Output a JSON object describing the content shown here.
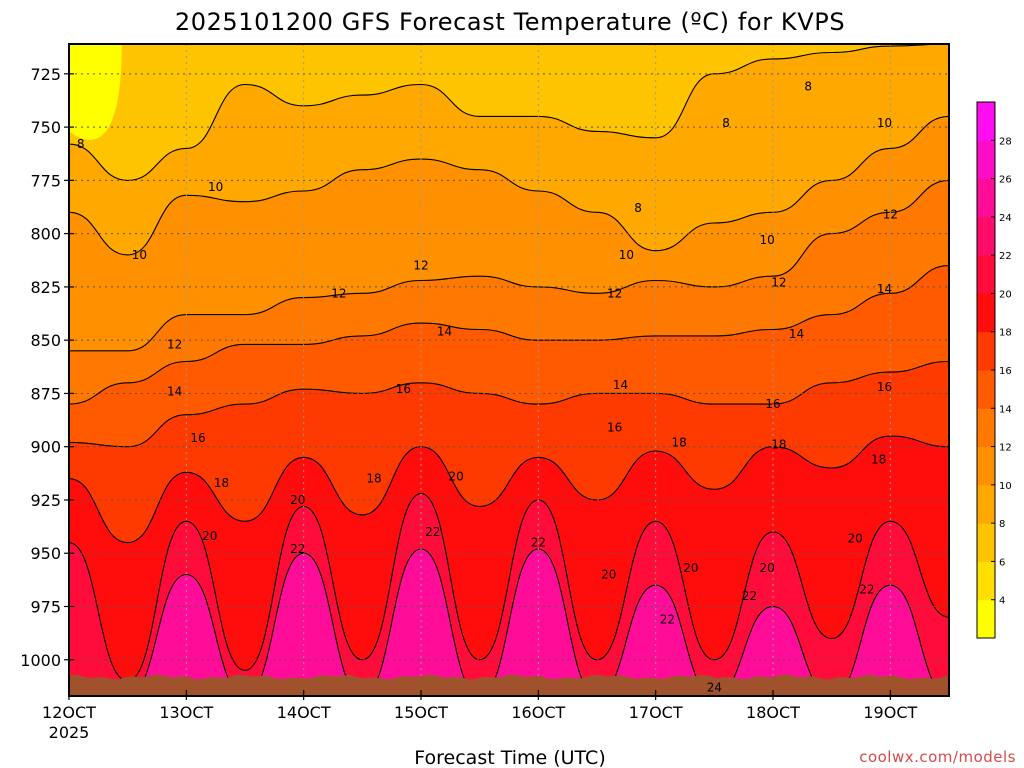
{
  "chart_data": {
    "type": "contour",
    "title": "2025101200 GFS Forecast Temperature (ºC) for KVPS",
    "xlabel": "Forecast Time (UTC)",
    "ylabel": "",
    "x_ticks": [
      {
        "label": "12OCT",
        "sublabel": "2025",
        "day": 12
      },
      {
        "label": "13OCT",
        "day": 13
      },
      {
        "label": "14OCT",
        "day": 14
      },
      {
        "label": "15OCT",
        "day": 15
      },
      {
        "label": "16OCT",
        "day": 16
      },
      {
        "label": "17OCT",
        "day": 17
      },
      {
        "label": "18OCT",
        "day": 18
      },
      {
        "label": "19OCT",
        "day": 19
      }
    ],
    "x_range_days": [
      12,
      19.5
    ],
    "y_ticks": [
      725,
      750,
      775,
      800,
      825,
      850,
      875,
      900,
      925,
      950,
      975,
      1000
    ],
    "y_range_hpa": [
      711,
      1017
    ],
    "grid": true,
    "colorbar": {
      "labels": [
        "4",
        "6",
        "8",
        "10",
        "12",
        "14",
        "16",
        "18",
        "20",
        "22",
        "24",
        "26",
        "28"
      ],
      "colors": [
        "#ffff00",
        "#ffdf00",
        "#ffc400",
        "#ffa800",
        "#ff9000",
        "#ff7800",
        "#ff5a00",
        "#ff3a00",
        "#ff0c0c",
        "#ff0c3a",
        "#ff0c6a",
        "#ff0c98",
        "#ff0cc8",
        "#ff0cf0"
      ]
    },
    "contour_levels": [
      8,
      10,
      12,
      14,
      16,
      18,
      20,
      22,
      24
    ],
    "isotherm_pressure_hpa": [
      {
        "level": 8,
        "p": [
          758,
          775,
          760,
          730,
          740,
          735,
          730,
          745,
          745,
          752,
          755,
          725,
          718,
          715,
          712,
          711
        ]
      },
      {
        "level": 10,
        "p": [
          790,
          810,
          782,
          785,
          780,
          770,
          765,
          770,
          780,
          790,
          808,
          795,
          790,
          775,
          760,
          745
        ]
      },
      {
        "level": 12,
        "p": [
          855,
          855,
          838,
          838,
          830,
          828,
          822,
          820,
          825,
          828,
          822,
          825,
          820,
          800,
          790,
          775
        ]
      },
      {
        "level": 14,
        "p": [
          880,
          870,
          860,
          852,
          852,
          848,
          842,
          845,
          850,
          850,
          848,
          848,
          845,
          838,
          828,
          815
        ]
      },
      {
        "level": 16,
        "p": [
          898,
          900,
          885,
          880,
          873,
          875,
          870,
          875,
          880,
          875,
          875,
          880,
          880,
          870,
          865,
          860
        ]
      },
      {
        "level": 18,
        "p": [
          915,
          945,
          912,
          935,
          905,
          932,
          900,
          928,
          905,
          925,
          902,
          920,
          900,
          910,
          895,
          900
        ]
      },
      {
        "level": 20,
        "p": [
          945,
          1010,
          935,
          1005,
          928,
          1000,
          922,
          1000,
          925,
          1000,
          935,
          1000,
          940,
          990,
          935,
          980
        ]
      },
      {
        "level": 22,
        "p": [
          1017,
          1017,
          960,
          1017,
          950,
          1017,
          948,
          1017,
          948,
          1017,
          965,
          1017,
          975,
          1017,
          965,
          1017
        ]
      }
    ],
    "labeled_values": [
      {
        "text": "8",
        "day": 12.1,
        "p": 758
      },
      {
        "text": "10",
        "day": 13.25,
        "p": 778
      },
      {
        "text": "10",
        "day": 12.6,
        "p": 810
      },
      {
        "text": "12",
        "day": 12.9,
        "p": 852
      },
      {
        "text": "14",
        "day": 12.9,
        "p": 874
      },
      {
        "text": "16",
        "day": 13.1,
        "p": 896
      },
      {
        "text": "18",
        "day": 13.3,
        "p": 917
      },
      {
        "text": "20",
        "day": 13.2,
        "p": 942
      },
      {
        "text": "12",
        "day": 14.3,
        "p": 828
      },
      {
        "text": "20",
        "day": 13.95,
        "p": 925
      },
      {
        "text": "22",
        "day": 13.95,
        "p": 948
      },
      {
        "text": "14",
        "day": 15.2,
        "p": 846
      },
      {
        "text": "16",
        "day": 14.85,
        "p": 873
      },
      {
        "text": "18",
        "day": 14.6,
        "p": 915
      },
      {
        "text": "20",
        "day": 15.3,
        "p": 914
      },
      {
        "text": "22",
        "day": 15.1,
        "p": 940
      },
      {
        "text": "12",
        "day": 15.0,
        "p": 815
      },
      {
        "text": "22",
        "day": 16.0,
        "p": 945
      },
      {
        "text": "12",
        "day": 16.65,
        "p": 828
      },
      {
        "text": "10",
        "day": 16.75,
        "p": 810
      },
      {
        "text": "8",
        "day": 16.85,
        "p": 788
      },
      {
        "text": "8",
        "day": 17.6,
        "p": 748
      },
      {
        "text": "14",
        "day": 16.7,
        "p": 871
      },
      {
        "text": "16",
        "day": 16.65,
        "p": 891
      },
      {
        "text": "18",
        "day": 17.2,
        "p": 898
      },
      {
        "text": "20",
        "day": 16.6,
        "p": 960
      },
      {
        "text": "20",
        "day": 17.3,
        "p": 957
      },
      {
        "text": "22",
        "day": 17.1,
        "p": 981
      },
      {
        "text": "10",
        "day": 17.95,
        "p": 803
      },
      {
        "text": "12",
        "day": 18.05,
        "p": 823
      },
      {
        "text": "14",
        "day": 18.2,
        "p": 847
      },
      {
        "text": "16",
        "day": 18.0,
        "p": 880
      },
      {
        "text": "18",
        "day": 18.05,
        "p": 899
      },
      {
        "text": "20",
        "day": 17.95,
        "p": 957
      },
      {
        "text": "22",
        "day": 17.8,
        "p": 970
      },
      {
        "text": "24",
        "day": 17.5,
        "p": 1013
      },
      {
        "text": "8",
        "day": 18.3,
        "p": 731
      },
      {
        "text": "10",
        "day": 18.95,
        "p": 748
      },
      {
        "text": "12",
        "day": 19.0,
        "p": 791
      },
      {
        "text": "14",
        "day": 18.95,
        "p": 826
      },
      {
        "text": "16",
        "day": 18.95,
        "p": 872
      },
      {
        "text": "18",
        "day": 18.9,
        "p": 906
      },
      {
        "text": "20",
        "day": 18.7,
        "p": 943
      },
      {
        "text": "22",
        "day": 18.8,
        "p": 967
      }
    ]
  },
  "footer": {
    "credit": "coolwx.com/models"
  }
}
